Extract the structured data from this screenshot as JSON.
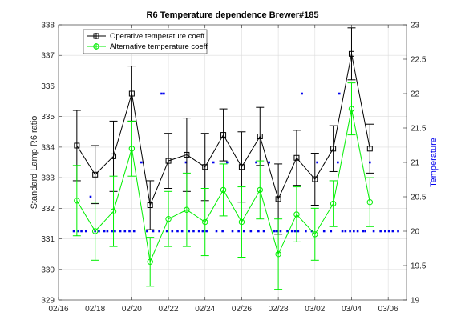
{
  "chart_data": {
    "type": "line",
    "title": "R6 Temperature dependence Brewer#185",
    "ylabel": "Standard Lamp R6 ratio",
    "y2label": "Temperature",
    "xlim": [
      "2016-02-16",
      "2016-03-06"
    ],
    "ylim": [
      329,
      338
    ],
    "y2lim": [
      19,
      23
    ],
    "grid": true,
    "legend_location": "top-left",
    "x_tick_labels": [
      "02/16",
      "02/18",
      "02/20",
      "02/22",
      "02/24",
      "02/26",
      "02/28",
      "03/02",
      "03/04",
      "03/06"
    ],
    "y_tick_labels": [
      "329",
      "330",
      "331",
      "332",
      "333",
      "334",
      "335",
      "336",
      "337",
      "338"
    ],
    "y2_tick_labels": [
      "19",
      "19.5",
      "20",
      "20.5",
      "21",
      "21.5",
      "22",
      "22.5",
      "23"
    ],
    "x": [
      "2016-02-17",
      "2016-02-18",
      "2016-02-19",
      "2016-02-20",
      "2016-02-21",
      "2016-02-22",
      "2016-02-23",
      "2016-02-24",
      "2016-02-25",
      "2016-02-26",
      "2016-02-27",
      "2016-02-28",
      "2016-02-29",
      "2016-03-01",
      "2016-03-02",
      "2016-03-03",
      "2016-03-04"
    ],
    "series": [
      {
        "name": "Operative temperature coeff",
        "color": "#000000",
        "values": [
          334.05,
          333.1,
          333.7,
          335.75,
          332.1,
          333.55,
          333.75,
          333.35,
          334.4,
          333.35,
          334.35,
          332.3,
          333.65,
          332.95,
          333.95,
          337.05,
          333.95
        ],
        "errors": [
          1.15,
          0.95,
          1.15,
          0.9,
          0.8,
          0.9,
          1.2,
          1.1,
          0.85,
          1.15,
          0.95,
          1.15,
          0.9,
          0.85,
          0.75,
          0.85,
          0.8
        ]
      },
      {
        "name": "Alternative temperature coeff",
        "color": "#00ee00",
        "values": [
          332.25,
          331.25,
          331.9,
          333.95,
          330.25,
          331.65,
          331.95,
          331.55,
          332.6,
          331.55,
          332.6,
          330.5,
          331.8,
          331.15,
          332.15,
          335.25,
          332.2
        ]
      }
    ],
    "temperature_series": {
      "color": "#0000ee",
      "points": [
        [
          "2016-02-16 20:00",
          20
        ],
        [
          "2016-02-17 02:00",
          20
        ],
        [
          "2016-02-17 06:00",
          20
        ],
        [
          "2016-02-17 12:00",
          20
        ],
        [
          "2016-02-17 18:00",
          20.5
        ],
        [
          "2016-02-18 00:00",
          20
        ],
        [
          "2016-02-18 05:00",
          20
        ],
        [
          "2016-02-18 12:00",
          20
        ],
        [
          "2016-02-18 16:00",
          20
        ],
        [
          "2016-02-18 22:00",
          20
        ],
        [
          "2016-02-19 02:00",
          20
        ],
        [
          "2016-02-19 09:00",
          20
        ],
        [
          "2016-02-19 15:00",
          20
        ],
        [
          "2016-02-19 21:00",
          20
        ],
        [
          "2016-02-20 03:00",
          20
        ],
        [
          "2016-02-20 12:00",
          21
        ],
        [
          "2016-02-20 15:00",
          21
        ],
        [
          "2016-02-20 20:00",
          20
        ],
        [
          "2016-02-21 04:00",
          20
        ],
        [
          "2016-02-21 12:00",
          20
        ],
        [
          "2016-02-21 15:00",
          22
        ],
        [
          "2016-02-21 18:00",
          22
        ],
        [
          "2016-02-21 22:00",
          20
        ],
        [
          "2016-02-22 05:00",
          20
        ],
        [
          "2016-02-22 12:00",
          20
        ],
        [
          "2016-02-22 18:00",
          20
        ],
        [
          "2016-02-22 23:00",
          21
        ],
        [
          "2016-02-23 03:00",
          20
        ],
        [
          "2016-02-23 09:00",
          20
        ],
        [
          "2016-02-23 16:00",
          20
        ],
        [
          "2016-02-23 21:00",
          20
        ],
        [
          "2016-02-24 02:00",
          20
        ],
        [
          "2016-02-24 11:00",
          21
        ],
        [
          "2016-02-24 15:00",
          20
        ],
        [
          "2016-02-24 23:00",
          20
        ],
        [
          "2016-02-25 05:00",
          21
        ],
        [
          "2016-02-25 12:00",
          20
        ],
        [
          "2016-02-25 20:00",
          20
        ],
        [
          "2016-02-26 03:00",
          20
        ],
        [
          "2016-02-26 12:00",
          20
        ],
        [
          "2016-02-26 19:00",
          21
        ],
        [
          "2016-02-26 22:00",
          20
        ],
        [
          "2016-02-27 05:00",
          20
        ],
        [
          "2016-02-27 12:00",
          21
        ],
        [
          "2016-02-27 19:00",
          20
        ],
        [
          "2016-02-27 22:00",
          20
        ],
        [
          "2016-02-28 03:00",
          20
        ],
        [
          "2016-02-28 12:00",
          20
        ],
        [
          "2016-02-28 18:00",
          20
        ],
        [
          "2016-02-28 22:00",
          20
        ],
        [
          "2016-02-29 02:00",
          20
        ],
        [
          "2016-02-29 07:00",
          22
        ],
        [
          "2016-02-29 12:00",
          20
        ],
        [
          "2016-02-29 20:00",
          20
        ],
        [
          "2016-03-01 03:00",
          21
        ],
        [
          "2016-03-01 12:00",
          20
        ],
        [
          "2016-03-01 21:00",
          20
        ],
        [
          "2016-03-02 06:00",
          21
        ],
        [
          "2016-03-02 08:00",
          22
        ],
        [
          "2016-03-02 12:00",
          20
        ],
        [
          "2016-03-02 16:00",
          20
        ],
        [
          "2016-03-02 22:00",
          20
        ],
        [
          "2016-03-03 03:00",
          20
        ],
        [
          "2016-03-03 08:00",
          20
        ],
        [
          "2016-03-03 15:00",
          20
        ],
        [
          "2016-03-03 18:00",
          20
        ],
        [
          "2016-03-04 00:00",
          21
        ],
        [
          "2016-03-04 05:00",
          20
        ],
        [
          "2016-03-04 14:00",
          20
        ],
        [
          "2016-03-04 20:00",
          20
        ],
        [
          "2016-03-05 01:00",
          20
        ],
        [
          "2016-03-05 06:00",
          20
        ],
        [
          "2016-03-05 13:00",
          20
        ]
      ]
    }
  }
}
